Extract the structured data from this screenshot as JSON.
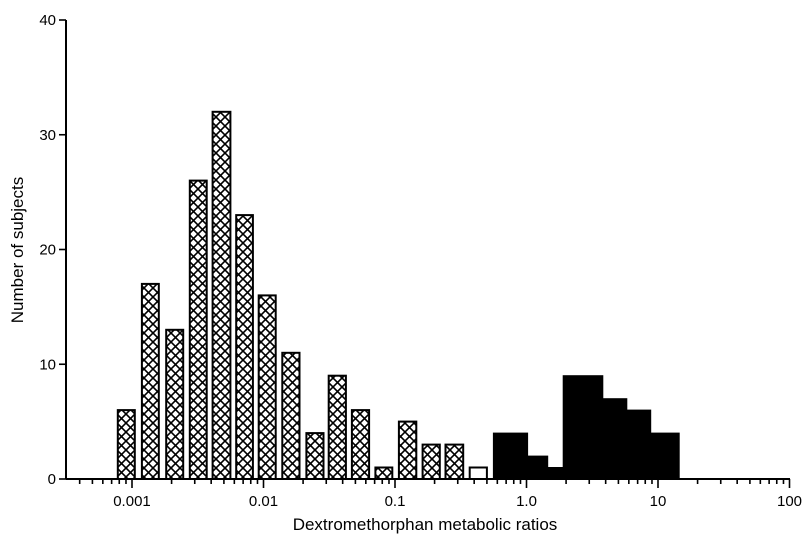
{
  "chart_data": {
    "type": "bar",
    "title": "",
    "xlabel": "Dextromethorphan metabolic ratios",
    "ylabel": "Number of subjects",
    "x_scale": "log",
    "xlim": [
      0.0003,
      100
    ],
    "ylim": [
      0,
      40
    ],
    "y_ticks": [
      0,
      10,
      20,
      30,
      40
    ],
    "x_ticks": [
      {
        "value": 0.001,
        "label": "0.001"
      },
      {
        "value": 0.01,
        "label": "0.01"
      },
      {
        "value": 0.1,
        "label": "0.1"
      },
      {
        "value": 1.0,
        "label": "1.0"
      },
      {
        "value": 10,
        "label": "10"
      },
      {
        "value": 100,
        "label": "100"
      }
    ],
    "grid": false,
    "series": [
      {
        "style": "crosshatch",
        "bars": [
          {
            "x_from": 0.00078,
            "x_to": 0.00105,
            "value": 6
          },
          {
            "x_from": 0.00119,
            "x_to": 0.0016,
            "value": 17
          },
          {
            "x_from": 0.00182,
            "x_to": 0.00245,
            "value": 13
          },
          {
            "x_from": 0.00275,
            "x_to": 0.0037,
            "value": 26
          },
          {
            "x_from": 0.0041,
            "x_to": 0.0056,
            "value": 32
          },
          {
            "x_from": 0.0062,
            "x_to": 0.0083,
            "value": 23
          },
          {
            "x_from": 0.0092,
            "x_to": 0.0124,
            "value": 16
          },
          {
            "x_from": 0.0139,
            "x_to": 0.0188,
            "value": 11
          },
          {
            "x_from": 0.0212,
            "x_to": 0.0286,
            "value": 4
          },
          {
            "x_from": 0.0313,
            "x_to": 0.0423,
            "value": 9
          },
          {
            "x_from": 0.047,
            "x_to": 0.0635,
            "value": 6
          },
          {
            "x_from": 0.071,
            "x_to": 0.0955,
            "value": 1
          },
          {
            "x_from": 0.107,
            "x_to": 0.145,
            "value": 5
          },
          {
            "x_from": 0.162,
            "x_to": 0.219,
            "value": 3
          },
          {
            "x_from": 0.242,
            "x_to": 0.33,
            "value": 3
          }
        ]
      },
      {
        "style": "open",
        "bars": [
          {
            "x_from": 0.37,
            "x_to": 0.5,
            "value": 1
          }
        ]
      },
      {
        "style": "solid",
        "bars": [
          {
            "x_from": 0.56,
            "x_to": 1.02,
            "value": 4
          },
          {
            "x_from": 1.02,
            "x_to": 1.45,
            "value": 2
          },
          {
            "x_from": 1.45,
            "x_to": 1.9,
            "value": 1
          },
          {
            "x_from": 1.9,
            "x_to": 3.8,
            "value": 9
          },
          {
            "x_from": 3.8,
            "x_to": 5.8,
            "value": 7
          },
          {
            "x_from": 5.8,
            "x_to": 8.8,
            "value": 6
          },
          {
            "x_from": 8.8,
            "x_to": 14.5,
            "value": 4
          }
        ]
      }
    ]
  }
}
